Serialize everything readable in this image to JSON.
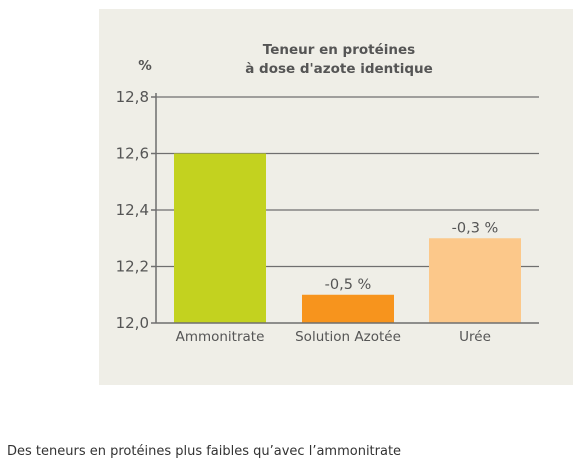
{
  "chart_data": {
    "type": "bar",
    "title_lines": [
      "Teneur en protéines",
      "à dose d'azote identique"
    ],
    "unit": "%",
    "categories": [
      "Ammonitrate",
      "Solution Azotée",
      "Urée"
    ],
    "values": [
      12.6,
      12.1,
      12.3
    ],
    "data_labels": [
      "",
      "-0,5 %",
      "-0,3 %"
    ],
    "colors": [
      "#c3d21f",
      "#f7941d",
      "#fcc88a"
    ],
    "yticks": [
      "12,0",
      "12,2",
      "12,4",
      "12,6",
      "12,8"
    ],
    "ytick_values": [
      12.0,
      12.2,
      12.4,
      12.6,
      12.8
    ],
    "ylim": [
      12.0,
      12.8
    ],
    "grid": true,
    "legend": "none"
  },
  "caption": "Des teneurs en protéines plus faibles qu’avec l’ammonitrate"
}
